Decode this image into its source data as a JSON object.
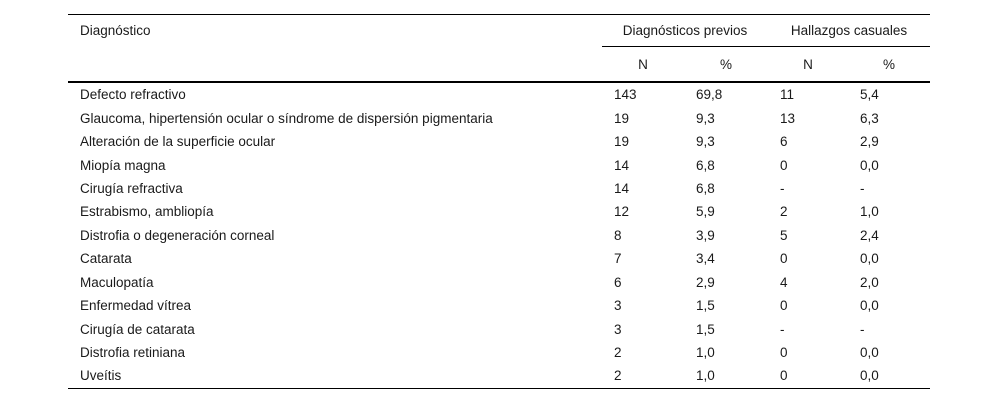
{
  "table": {
    "col_diagnosis_header": "Diagnóstico",
    "group_headers": [
      {
        "label": "Diagnósticos previos"
      },
      {
        "label": "Hallazgos casuales"
      }
    ],
    "sub_headers": [
      "N",
      "%",
      "N",
      "%"
    ],
    "rows": [
      {
        "diagnosis": "Defecto refractivo",
        "prev_n": "143",
        "prev_pct": "69,8",
        "cas_n": "11",
        "cas_pct": "5,4"
      },
      {
        "diagnosis": "Glaucoma, hipertensión ocular o síndrome de dispersión pigmentaria",
        "prev_n": "19",
        "prev_pct": "9,3",
        "cas_n": "13",
        "cas_pct": "6,3"
      },
      {
        "diagnosis": "Alteración de la superficie ocular",
        "prev_n": "19",
        "prev_pct": "9,3",
        "cas_n": "6",
        "cas_pct": "2,9"
      },
      {
        "diagnosis": "Miopía magna",
        "prev_n": "14",
        "prev_pct": "6,8",
        "cas_n": "0",
        "cas_pct": "0,0"
      },
      {
        "diagnosis": "Cirugía refractiva",
        "prev_n": "14",
        "prev_pct": "6,8",
        "cas_n": "-",
        "cas_pct": "-"
      },
      {
        "diagnosis": "Estrabismo, ambliopía",
        "prev_n": "12",
        "prev_pct": "5,9",
        "cas_n": "2",
        "cas_pct": "1,0"
      },
      {
        "diagnosis": "Distrofia o degeneración corneal",
        "prev_n": "8",
        "prev_pct": "3,9",
        "cas_n": "5",
        "cas_pct": "2,4"
      },
      {
        "diagnosis": "Catarata",
        "prev_n": "7",
        "prev_pct": "3,4",
        "cas_n": "0",
        "cas_pct": "0,0"
      },
      {
        "diagnosis": "Maculopatía",
        "prev_n": "6",
        "prev_pct": "2,9",
        "cas_n": "4",
        "cas_pct": "2,0"
      },
      {
        "diagnosis": "Enfermedad vítrea",
        "prev_n": "3",
        "prev_pct": "1,5",
        "cas_n": "0",
        "cas_pct": "0,0"
      },
      {
        "diagnosis": "Cirugía de catarata",
        "prev_n": "3",
        "prev_pct": "1,5",
        "cas_n": "-",
        "cas_pct": "-"
      },
      {
        "diagnosis": "Distrofia retiniana",
        "prev_n": "2",
        "prev_pct": "1,0",
        "cas_n": "0",
        "cas_pct": "0,0"
      },
      {
        "diagnosis": "Uveítis",
        "prev_n": "2",
        "prev_pct": "1,0",
        "cas_n": "0",
        "cas_pct": "0,0"
      }
    ],
    "colors": {
      "text": "#1a1a1a",
      "rule": "#000000",
      "background": "#ffffff"
    }
  }
}
